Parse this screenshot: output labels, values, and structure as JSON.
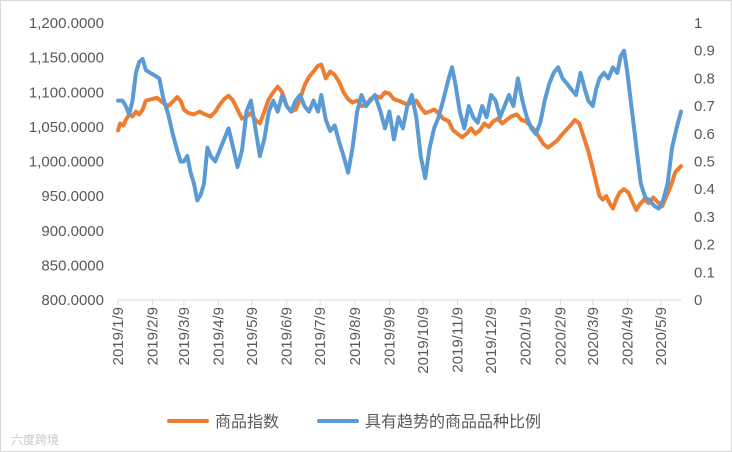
{
  "chart_data": {
    "type": "line",
    "title": "",
    "left_axis": {
      "ylim": [
        800,
        1200
      ],
      "ticks": [
        "800.0000",
        "850.0000",
        "900.0000",
        "950.0000",
        "1,000.0000",
        "1,050.0000",
        "1,100.0000",
        "1,150.0000",
        "1,200.0000"
      ]
    },
    "right_axis": {
      "ylim": [
        0,
        1
      ],
      "ticks": [
        "0",
        "0.1",
        "0.2",
        "0.3",
        "0.4",
        "0.5",
        "0.6",
        "0.7",
        "0.8",
        "0.9",
        "1"
      ]
    },
    "x_tick_labels": [
      "2019/1/9",
      "2019/2/9",
      "2019/3/9",
      "2019/4/9",
      "2019/5/9",
      "2019/6/9",
      "2019/7/9",
      "2019/8/9",
      "2019/9/9",
      "2019/10/9",
      "2019/11/9",
      "2019/12/9",
      "2020/1/9",
      "2020/2/9",
      "2020/3/9",
      "2020/4/9",
      "2020/5/9"
    ],
    "x_range": [
      "2019/1/9",
      "2020/5/27"
    ],
    "legend_position": "bottom",
    "colors": {
      "index": "#ED7D31",
      "ratio": "#5B9BD5"
    },
    "series": [
      {
        "name": "商品指数",
        "axis": "left",
        "points": [
          [
            "2019/1/9",
            1045
          ],
          [
            "2019/1/11",
            1055
          ],
          [
            "2019/1/14",
            1052
          ],
          [
            "2019/1/16",
            1060
          ],
          [
            "2019/1/19",
            1068
          ],
          [
            "2019/1/22",
            1065
          ],
          [
            "2019/1/25",
            1072
          ],
          [
            "2019/1/28",
            1068
          ],
          [
            "2019/1/31",
            1075
          ],
          [
            "2019/2/3",
            1088
          ],
          [
            "2019/2/8",
            1090
          ],
          [
            "2019/2/13",
            1092
          ],
          [
            "2019/2/18",
            1085
          ],
          [
            "2019/2/23",
            1080
          ],
          [
            "2019/2/28",
            1088
          ],
          [
            "2019/3/3",
            1093
          ],
          [
            "2019/3/6",
            1088
          ],
          [
            "2019/3/9",
            1075
          ],
          [
            "2019/3/13",
            1070
          ],
          [
            "2019/3/18",
            1068
          ],
          [
            "2019/3/23",
            1072
          ],
          [
            "2019/3/28",
            1068
          ],
          [
            "2019/4/2",
            1065
          ],
          [
            "2019/4/6",
            1072
          ],
          [
            "2019/4/10",
            1082
          ],
          [
            "2019/4/14",
            1090
          ],
          [
            "2019/4/18",
            1095
          ],
          [
            "2019/4/22",
            1088
          ],
          [
            "2019/4/26",
            1075
          ],
          [
            "2019/4/30",
            1062
          ],
          [
            "2019/5/4",
            1065
          ],
          [
            "2019/5/8",
            1070
          ],
          [
            "2019/5/12",
            1060
          ],
          [
            "2019/5/16",
            1055
          ],
          [
            "2019/5/20",
            1072
          ],
          [
            "2019/5/24",
            1090
          ],
          [
            "2019/5/28",
            1100
          ],
          [
            "2019/6/1",
            1108
          ],
          [
            "2019/6/5",
            1100
          ],
          [
            "2019/6/9",
            1080
          ],
          [
            "2019/6/13",
            1072
          ],
          [
            "2019/6/17",
            1075
          ],
          [
            "2019/6/21",
            1090
          ],
          [
            "2019/6/25",
            1110
          ],
          [
            "2019/6/29",
            1122
          ],
          [
            "2019/7/3",
            1130
          ],
          [
            "2019/7/7",
            1138
          ],
          [
            "2019/7/10",
            1140
          ],
          [
            "2019/7/14",
            1120
          ],
          [
            "2019/7/18",
            1130
          ],
          [
            "2019/7/22",
            1125
          ],
          [
            "2019/7/26",
            1115
          ],
          [
            "2019/7/30",
            1100
          ],
          [
            "2019/8/3",
            1090
          ],
          [
            "2019/8/7",
            1085
          ],
          [
            "2019/8/11",
            1088
          ],
          [
            "2019/8/15",
            1080
          ],
          [
            "2019/8/19",
            1082
          ],
          [
            "2019/8/23",
            1090
          ],
          [
            "2019/8/27",
            1095
          ],
          [
            "2019/9/1",
            1092
          ],
          [
            "2019/9/5",
            1100
          ],
          [
            "2019/9/9",
            1098
          ],
          [
            "2019/9/13",
            1090
          ],
          [
            "2019/9/17",
            1088
          ],
          [
            "2019/9/21",
            1085
          ],
          [
            "2019/9/25",
            1082
          ],
          [
            "2019/9/29",
            1085
          ],
          [
            "2019/10/3",
            1088
          ],
          [
            "2019/10/7",
            1078
          ],
          [
            "2019/10/11",
            1070
          ],
          [
            "2019/10/15",
            1072
          ],
          [
            "2019/10/19",
            1075
          ],
          [
            "2019/10/23",
            1070
          ],
          [
            "2019/10/27",
            1062
          ],
          [
            "2019/11/1",
            1058
          ],
          [
            "2019/11/5",
            1045
          ],
          [
            "2019/11/9",
            1040
          ],
          [
            "2019/11/13",
            1035
          ],
          [
            "2019/11/17",
            1040
          ],
          [
            "2019/11/21",
            1048
          ],
          [
            "2019/11/25",
            1040
          ],
          [
            "2019/11/29",
            1045
          ],
          [
            "2019/12/3",
            1055
          ],
          [
            "2019/12/7",
            1050
          ],
          [
            "2019/12/11",
            1058
          ],
          [
            "2019/12/15",
            1062
          ],
          [
            "2019/12/19",
            1055
          ],
          [
            "2019/12/23",
            1060
          ],
          [
            "2019/12/27",
            1065
          ],
          [
            "2020/1/1",
            1068
          ],
          [
            "2020/1/5",
            1060
          ],
          [
            "2020/1/9",
            1058
          ],
          [
            "2020/1/13",
            1052
          ],
          [
            "2020/1/17",
            1045
          ],
          [
            "2020/1/21",
            1035
          ],
          [
            "2020/1/25",
            1025
          ],
          [
            "2020/1/29",
            1020
          ],
          [
            "2020/2/2",
            1025
          ],
          [
            "2020/2/6",
            1030
          ],
          [
            "2020/2/10",
            1038
          ],
          [
            "2020/2/14",
            1045
          ],
          [
            "2020/2/18",
            1052
          ],
          [
            "2020/2/22",
            1060
          ],
          [
            "2020/2/26",
            1055
          ],
          [
            "2020/3/1",
            1035
          ],
          [
            "2020/3/5",
            1015
          ],
          [
            "2020/3/9",
            990
          ],
          [
            "2020/3/12",
            970
          ],
          [
            "2020/3/15",
            950
          ],
          [
            "2020/3/18",
            945
          ],
          [
            "2020/3/21",
            950
          ],
          [
            "2020/3/24",
            940
          ],
          [
            "2020/3/27",
            932
          ],
          [
            "2020/3/30",
            945
          ],
          [
            "2020/4/2",
            955
          ],
          [
            "2020/4/6",
            960
          ],
          [
            "2020/4/10",
            955
          ],
          [
            "2020/4/14",
            940
          ],
          [
            "2020/4/17",
            930
          ],
          [
            "2020/4/20",
            938
          ],
          [
            "2020/4/24",
            945
          ],
          [
            "2020/4/28",
            940
          ],
          [
            "2020/5/2",
            948
          ],
          [
            "2020/5/6",
            942
          ],
          [
            "2020/5/10",
            935
          ],
          [
            "2020/5/14",
            950
          ],
          [
            "2020/5/18",
            965
          ],
          [
            "2020/5/22",
            985
          ],
          [
            "2020/5/27",
            993
          ]
        ]
      },
      {
        "name": "具有趋势的商品品种比例",
        "axis": "right",
        "points": [
          [
            "2019/1/9",
            0.72
          ],
          [
            "2019/1/13",
            0.72
          ],
          [
            "2019/1/16",
            0.7
          ],
          [
            "2019/1/19",
            0.67
          ],
          [
            "2019/1/22",
            0.72
          ],
          [
            "2019/1/25",
            0.82
          ],
          [
            "2019/1/28",
            0.86
          ],
          [
            "2019/1/31",
            0.87
          ],
          [
            "2019/2/3",
            0.83
          ],
          [
            "2019/2/7",
            0.82
          ],
          [
            "2019/2/11",
            0.81
          ],
          [
            "2019/2/15",
            0.8
          ],
          [
            "2019/2/19",
            0.72
          ],
          [
            "2019/2/23",
            0.67
          ],
          [
            "2019/2/27",
            0.6
          ],
          [
            "2019/3/3",
            0.54
          ],
          [
            "2019/3/6",
            0.5
          ],
          [
            "2019/3/9",
            0.5
          ],
          [
            "2019/3/12",
            0.52
          ],
          [
            "2019/3/15",
            0.46
          ],
          [
            "2019/3/18",
            0.42
          ],
          [
            "2019/3/21",
            0.36
          ],
          [
            "2019/3/24",
            0.38
          ],
          [
            "2019/3/27",
            0.42
          ],
          [
            "2019/3/30",
            0.55
          ],
          [
            "2019/4/2",
            0.52
          ],
          [
            "2019/4/6",
            0.5
          ],
          [
            "2019/4/10",
            0.54
          ],
          [
            "2019/4/14",
            0.58
          ],
          [
            "2019/4/18",
            0.62
          ],
          [
            "2019/4/22",
            0.55
          ],
          [
            "2019/4/26",
            0.48
          ],
          [
            "2019/4/30",
            0.54
          ],
          [
            "2019/5/4",
            0.68
          ],
          [
            "2019/5/8",
            0.72
          ],
          [
            "2019/5/12",
            0.62
          ],
          [
            "2019/5/16",
            0.52
          ],
          [
            "2019/5/20",
            0.58
          ],
          [
            "2019/5/24",
            0.68
          ],
          [
            "2019/5/28",
            0.72
          ],
          [
            "2019/6/1",
            0.68
          ],
          [
            "2019/6/5",
            0.74
          ],
          [
            "2019/6/9",
            0.7
          ],
          [
            "2019/6/13",
            0.68
          ],
          [
            "2019/6/17",
            0.72
          ],
          [
            "2019/6/21",
            0.74
          ],
          [
            "2019/6/25",
            0.7
          ],
          [
            "2019/6/29",
            0.68
          ],
          [
            "2019/7/3",
            0.72
          ],
          [
            "2019/7/7",
            0.68
          ],
          [
            "2019/7/10",
            0.74
          ],
          [
            "2019/7/14",
            0.65
          ],
          [
            "2019/7/18",
            0.61
          ],
          [
            "2019/7/22",
            0.63
          ],
          [
            "2019/7/26",
            0.57
          ],
          [
            "2019/7/30",
            0.52
          ],
          [
            "2019/8/3",
            0.46
          ],
          [
            "2019/8/7",
            0.55
          ],
          [
            "2019/8/11",
            0.68
          ],
          [
            "2019/8/15",
            0.74
          ],
          [
            "2019/8/19",
            0.7
          ],
          [
            "2019/8/23",
            0.72
          ],
          [
            "2019/8/27",
            0.74
          ],
          [
            "2019/9/1",
            0.68
          ],
          [
            "2019/9/5",
            0.62
          ],
          [
            "2019/9/9",
            0.68
          ],
          [
            "2019/9/13",
            0.58
          ],
          [
            "2019/9/17",
            0.66
          ],
          [
            "2019/9/21",
            0.62
          ],
          [
            "2019/9/25",
            0.7
          ],
          [
            "2019/9/29",
            0.74
          ],
          [
            "2019/10/3",
            0.66
          ],
          [
            "2019/10/7",
            0.52
          ],
          [
            "2019/10/11",
            0.44
          ],
          [
            "2019/10/15",
            0.55
          ],
          [
            "2019/10/19",
            0.62
          ],
          [
            "2019/10/23",
            0.66
          ],
          [
            "2019/10/27",
            0.72
          ],
          [
            "2019/11/1",
            0.8
          ],
          [
            "2019/11/4",
            0.84
          ],
          [
            "2019/11/7",
            0.78
          ],
          [
            "2019/11/11",
            0.68
          ],
          [
            "2019/11/15",
            0.62
          ],
          [
            "2019/11/19",
            0.7
          ],
          [
            "2019/11/23",
            0.66
          ],
          [
            "2019/11/27",
            0.64
          ],
          [
            "2019/12/1",
            0.7
          ],
          [
            "2019/12/5",
            0.66
          ],
          [
            "2019/12/9",
            0.74
          ],
          [
            "2019/12/13",
            0.72
          ],
          [
            "2019/12/17",
            0.66
          ],
          [
            "2019/12/21",
            0.7
          ],
          [
            "2019/12/25",
            0.74
          ],
          [
            "2019/12/29",
            0.7
          ],
          [
            "2020/1/2",
            0.8
          ],
          [
            "2020/1/6",
            0.72
          ],
          [
            "2020/1/10",
            0.66
          ],
          [
            "2020/1/14",
            0.62
          ],
          [
            "2020/1/18",
            0.6
          ],
          [
            "2020/1/22",
            0.64
          ],
          [
            "2020/1/26",
            0.72
          ],
          [
            "2020/1/30",
            0.78
          ],
          [
            "2020/2/3",
            0.82
          ],
          [
            "2020/2/7",
            0.84
          ],
          [
            "2020/2/11",
            0.8
          ],
          [
            "2020/2/15",
            0.78
          ],
          [
            "2020/2/19",
            0.76
          ],
          [
            "2020/2/23",
            0.74
          ],
          [
            "2020/2/27",
            0.82
          ],
          [
            "2020/3/2",
            0.76
          ],
          [
            "2020/3/5",
            0.72
          ],
          [
            "2020/3/9",
            0.7
          ],
          [
            "2020/3/12",
            0.76
          ],
          [
            "2020/3/15",
            0.8
          ],
          [
            "2020/3/19",
            0.82
          ],
          [
            "2020/3/23",
            0.8
          ],
          [
            "2020/3/27",
            0.84
          ],
          [
            "2020/3/31",
            0.82
          ],
          [
            "2020/4/3",
            0.88
          ],
          [
            "2020/4/6",
            0.9
          ],
          [
            "2020/4/9",
            0.82
          ],
          [
            "2020/4/12",
            0.72
          ],
          [
            "2020/4/15",
            0.62
          ],
          [
            "2020/4/18",
            0.52
          ],
          [
            "2020/4/21",
            0.42
          ],
          [
            "2020/4/25",
            0.37
          ],
          [
            "2020/4/29",
            0.36
          ],
          [
            "2020/5/3",
            0.34
          ],
          [
            "2020/5/7",
            0.33
          ],
          [
            "2020/5/11",
            0.36
          ],
          [
            "2020/5/15",
            0.42
          ],
          [
            "2020/5/19",
            0.55
          ],
          [
            "2020/5/23",
            0.62
          ],
          [
            "2020/5/27",
            0.68
          ]
        ]
      }
    ]
  },
  "watermark": "六度跨境"
}
